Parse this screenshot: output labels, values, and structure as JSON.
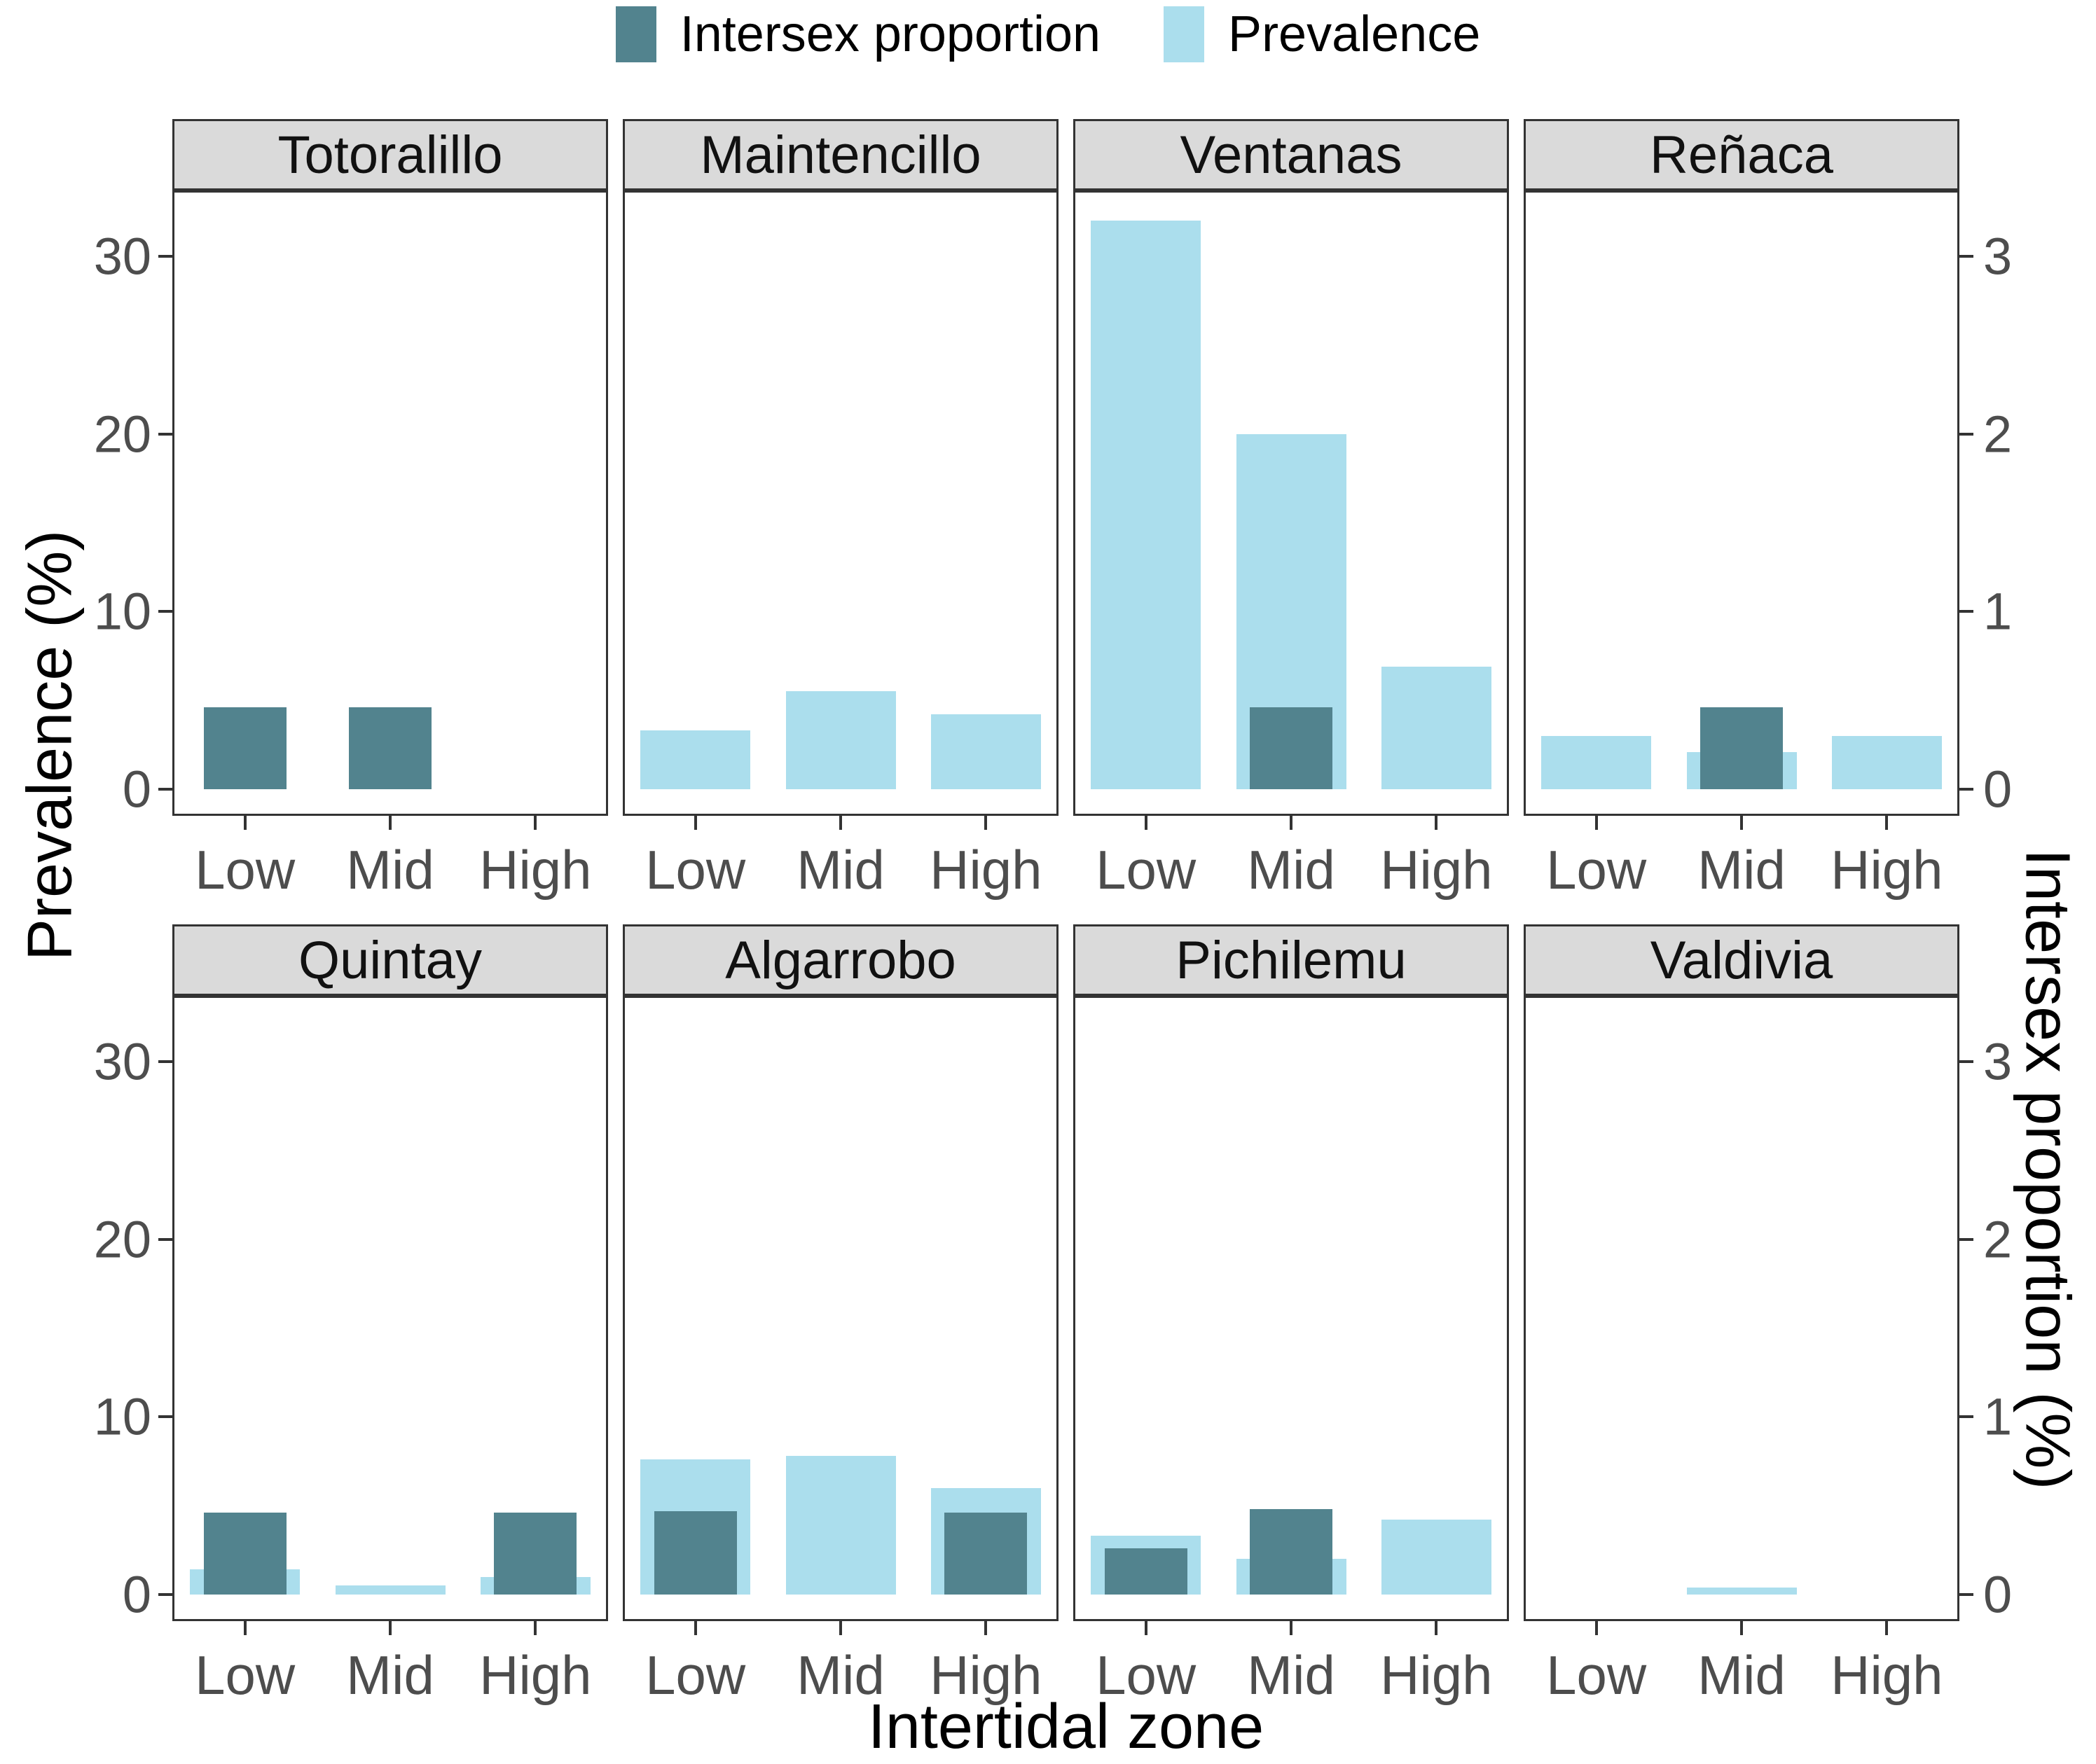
{
  "legend": {
    "items": [
      {
        "label": "Intersex proportion",
        "series": "intersex"
      },
      {
        "label": "Prevalence",
        "series": "prevalence"
      }
    ]
  },
  "axes": {
    "left_title": "Prevalence (%)",
    "right_title": "Intersex proportion (%)",
    "x_title": "Intertidal zone",
    "left_tick_labels": [
      "0",
      "10",
      "20",
      "30"
    ],
    "right_tick_labels": [
      "0",
      "1",
      "2",
      "3"
    ]
  },
  "colors": {
    "intersex": "#52838E",
    "prevalence": "#ABDEED",
    "strip_bg": "#DADADA",
    "panel_border": "#333333",
    "tick_label": "#4D4D4D"
  },
  "chart_data": {
    "type": "bar",
    "facet_layout": "2x4",
    "categories": [
      "Low",
      "Mid",
      "High"
    ],
    "xlabel": "Intertidal zone",
    "left_axis": {
      "label": "Prevalence (%)",
      "ticks": [
        0,
        10,
        20,
        30
      ],
      "range": [
        -1.5,
        33.7
      ]
    },
    "right_axis": {
      "label": "Intersex proportion (%)",
      "ticks": [
        0,
        1,
        2,
        3
      ],
      "scale_factor": 10
    },
    "legend_position": "top",
    "grid": "off",
    "series_names": [
      "Intersex proportion",
      "Prevalence"
    ],
    "facets": [
      {
        "title": "Totoralillo",
        "prevalence": [
          0,
          0,
          0
        ],
        "intersex": [
          0.46,
          0.46,
          0
        ]
      },
      {
        "title": "Maintencillo",
        "prevalence": [
          3.3,
          5.5,
          4.2
        ],
        "intersex": [
          0,
          0,
          0
        ]
      },
      {
        "title": "Ventanas",
        "prevalence": [
          32,
          20,
          6.9
        ],
        "intersex": [
          0,
          0.46,
          0
        ]
      },
      {
        "title": "Reñaca",
        "prevalence": [
          3,
          2.1,
          3
        ],
        "intersex": [
          0,
          0.46,
          0
        ]
      },
      {
        "title": "Quintay",
        "prevalence": [
          1.4,
          0.5,
          1
        ],
        "intersex": [
          0.46,
          0,
          0.46
        ]
      },
      {
        "title": "Algarrobo",
        "prevalence": [
          7.6,
          7.8,
          6
        ],
        "intersex": [
          0.47,
          0,
          0.46
        ]
      },
      {
        "title": "Pichilemu",
        "prevalence": [
          3.3,
          2,
          4.2
        ],
        "intersex": [
          0.26,
          0.48,
          0
        ]
      },
      {
        "title": "Valdivia",
        "prevalence": [
          0,
          0.4,
          0
        ],
        "intersex": [
          0,
          0,
          0
        ]
      }
    ]
  }
}
